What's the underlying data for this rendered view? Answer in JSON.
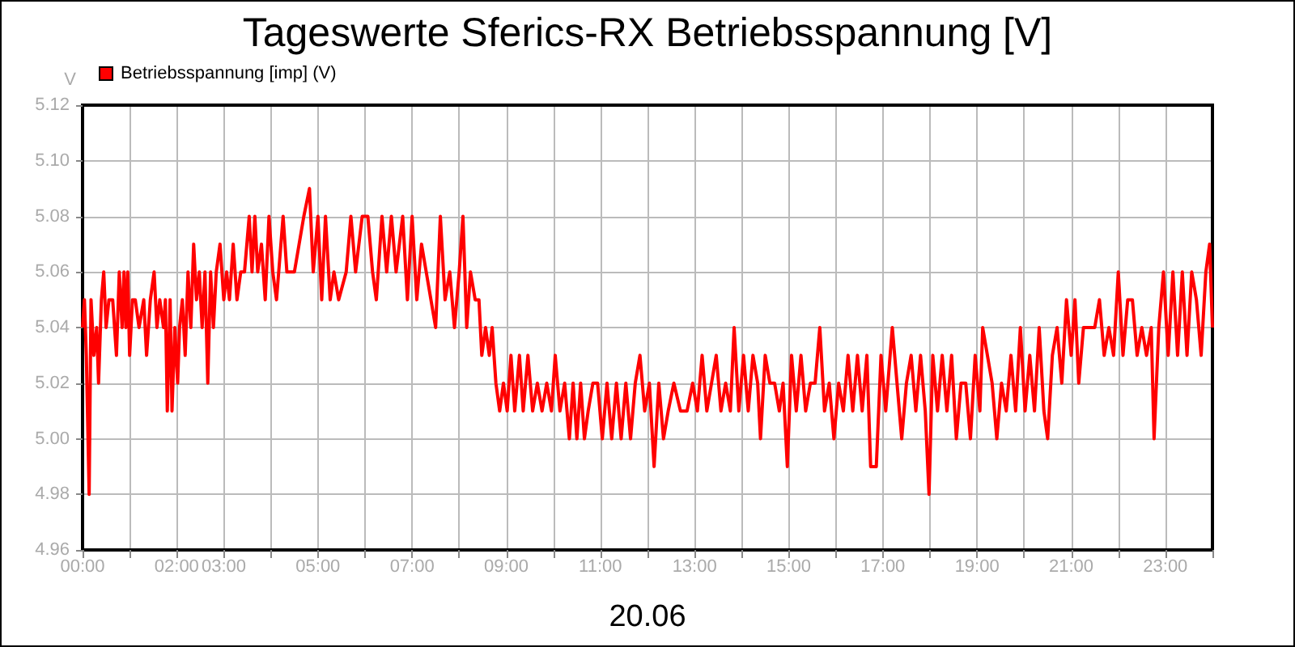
{
  "chart_data": {
    "type": "line",
    "title": "Tageswerte Sferics-RX Betriebsspannung [V]",
    "xlabel": "20.06",
    "ylabel": "V",
    "legend": "top left",
    "grid": true,
    "marker": "none",
    "line_style": "solid",
    "xlim": [
      0,
      24
    ],
    "ylim": [
      4.96,
      5.12
    ],
    "xticks": [
      {
        "value": 0,
        "label": "00:00"
      },
      {
        "value": 1,
        "label": null
      },
      {
        "value": 2,
        "label": "02:00"
      },
      {
        "value": 3,
        "label": "03:00"
      },
      {
        "value": 4,
        "label": null
      },
      {
        "value": 5,
        "label": "05:00"
      },
      {
        "value": 6,
        "label": null
      },
      {
        "value": 7,
        "label": "07:00"
      },
      {
        "value": 8,
        "label": null
      },
      {
        "value": 9,
        "label": "09:00"
      },
      {
        "value": 10,
        "label": null
      },
      {
        "value": 11,
        "label": "11:00"
      },
      {
        "value": 12,
        "label": null
      },
      {
        "value": 13,
        "label": "13:00"
      },
      {
        "value": 14,
        "label": null
      },
      {
        "value": 15,
        "label": "15:00"
      },
      {
        "value": 16,
        "label": null
      },
      {
        "value": 17,
        "label": "17:00"
      },
      {
        "value": 18,
        "label": null
      },
      {
        "value": 19,
        "label": "19:00"
      },
      {
        "value": 20,
        "label": null
      },
      {
        "value": 21,
        "label": "21:00"
      },
      {
        "value": 22,
        "label": null
      },
      {
        "value": 23,
        "label": "23:00"
      },
      {
        "value": 24,
        "label": null
      }
    ],
    "yticks": [
      4.96,
      4.98,
      {
        "value": 5,
        "label": "5.00"
      },
      5.02,
      5.04,
      5.06,
      5.08,
      {
        "value": 5.1,
        "label": "5.10"
      },
      5.12
    ],
    "series": [
      {
        "name": "Betriebsspannung [imp] (V)",
        "color": "#ff0000",
        "x": [
          0,
          0.04,
          0.08,
          0.14,
          0.18,
          0.24,
          0.3,
          0.34,
          0.4,
          0.45,
          0.5,
          0.56,
          0.64,
          0.68,
          0.72,
          0.78,
          0.84,
          0.88,
          0.92,
          0.96,
          1,
          1.06,
          1.12,
          1.2,
          1.3,
          1.36,
          1.44,
          1.52,
          1.58,
          1.64,
          1.72,
          1.76,
          1.8,
          1.86,
          1.9,
          1.96,
          2.02,
          2.06,
          2.12,
          2.18,
          2.24,
          2.3,
          2.36,
          2.42,
          2.48,
          2.54,
          2.6,
          2.66,
          2.72,
          2.78,
          2.84,
          2.92,
          3,
          3.06,
          3.12,
          3.2,
          3.28,
          3.36,
          3.44,
          3.54,
          3.6,
          3.66,
          3.72,
          3.8,
          3.88,
          3.96,
          4.04,
          4.12,
          4.26,
          4.34,
          4.5,
          4.6,
          4.7,
          4.82,
          4.9,
          5,
          5.08,
          5.16,
          5.26,
          5.34,
          5.44,
          5.6,
          5.7,
          5.8,
          5.94,
          6.06,
          6.16,
          6.24,
          6.36,
          6.46,
          6.56,
          6.66,
          6.8,
          6.9,
          7,
          7.1,
          7.2,
          7.3,
          7.4,
          7.5,
          7.6,
          7.7,
          7.8,
          7.9,
          8,
          8.08,
          8.16,
          8.24,
          8.34,
          8.42,
          8.48,
          8.56,
          8.64,
          8.7,
          8.78,
          8.86,
          8.94,
          9.02,
          9.1,
          9.18,
          9.28,
          9.36,
          9.46,
          9.56,
          9.66,
          9.76,
          9.86,
          9.96,
          10.04,
          10.14,
          10.24,
          10.34,
          10.42,
          10.5,
          10.58,
          10.66,
          10.74,
          10.84,
          10.94,
          11.04,
          11.14,
          11.24,
          11.34,
          11.44,
          11.54,
          11.64,
          11.74,
          11.84,
          11.94,
          12.04,
          12.14,
          12.24,
          12.34,
          12.44,
          12.56,
          12.7,
          12.84,
          12.96,
          13.06,
          13.16,
          13.26,
          13.36,
          13.46,
          13.56,
          13.66,
          13.76,
          13.84,
          13.94,
          14.04,
          14.14,
          14.24,
          14.34,
          14.4,
          14.5,
          14.6,
          14.7,
          14.8,
          14.88,
          14.97,
          15.06,
          15.16,
          15.26,
          15.36,
          15.46,
          15.56,
          15.66,
          15.76,
          15.86,
          15.96,
          16.06,
          16.16,
          16.26,
          16.36,
          16.46,
          16.56,
          16.66,
          16.74,
          16.86,
          16.96,
          17.06,
          17.2,
          17.3,
          17.4,
          17.5,
          17.6,
          17.7,
          17.8,
          17.9,
          17.98,
          18.06,
          18.16,
          18.26,
          18.36,
          18.46,
          18.56,
          18.66,
          18.76,
          18.86,
          18.96,
          19.06,
          19.12,
          19.22,
          19.32,
          19.42,
          19.52,
          19.62,
          19.72,
          19.82,
          19.92,
          20.02,
          20.12,
          20.22,
          20.32,
          20.42,
          20.5,
          20.6,
          20.7,
          20.8,
          20.9,
          21,
          21.08,
          21.16,
          21.26,
          21.36,
          21.5,
          21.6,
          21.7,
          21.8,
          21.9,
          22,
          22.1,
          22.2,
          22.3,
          22.4,
          22.5,
          22.6,
          22.7,
          22.76,
          22.86,
          22.96,
          23.06,
          23.16,
          23.26,
          23.36,
          23.46,
          23.56,
          23.66,
          23.76,
          23.86,
          23.94,
          24
        ],
        "values": [
          5.04,
          5.05,
          5.03,
          4.98,
          5.05,
          5.03,
          5.04,
          5.02,
          5.05,
          5.06,
          5.04,
          5.05,
          5.05,
          5.04,
          5.03,
          5.06,
          5.04,
          5.06,
          5.04,
          5.06,
          5.03,
          5.05,
          5.05,
          5.04,
          5.05,
          5.03,
          5.05,
          5.06,
          5.04,
          5.05,
          5.04,
          5.05,
          5.01,
          5.05,
          5.01,
          5.04,
          5.02,
          5.04,
          5.05,
          5.03,
          5.06,
          5.04,
          5.07,
          5.05,
          5.06,
          5.04,
          5.06,
          5.02,
          5.06,
          5.04,
          5.06,
          5.07,
          5.05,
          5.06,
          5.05,
          5.07,
          5.05,
          5.06,
          5.06,
          5.08,
          5.06,
          5.08,
          5.06,
          5.07,
          5.05,
          5.08,
          5.06,
          5.05,
          5.08,
          5.06,
          5.06,
          5.07,
          5.08,
          5.09,
          5.06,
          5.08,
          5.05,
          5.08,
          5.05,
          5.06,
          5.05,
          5.06,
          5.08,
          5.06,
          5.08,
          5.08,
          5.06,
          5.05,
          5.08,
          5.06,
          5.08,
          5.06,
          5.08,
          5.05,
          5.08,
          5.05,
          5.07,
          5.06,
          5.05,
          5.04,
          5.08,
          5.05,
          5.06,
          5.04,
          5.06,
          5.08,
          5.04,
          5.06,
          5.05,
          5.05,
          5.03,
          5.04,
          5.03,
          5.04,
          5.02,
          5.01,
          5.02,
          5.01,
          5.03,
          5.01,
          5.03,
          5.01,
          5.03,
          5.01,
          5.02,
          5.01,
          5.02,
          5.01,
          5.03,
          5.01,
          5.02,
          5.0,
          5.02,
          5.0,
          5.02,
          5.0,
          5.01,
          5.02,
          5.02,
          5.0,
          5.02,
          5.0,
          5.02,
          5.0,
          5.02,
          5.0,
          5.02,
          5.03,
          5.01,
          5.02,
          4.99,
          5.02,
          5.0,
          5.01,
          5.02,
          5.01,
          5.01,
          5.02,
          5.01,
          5.03,
          5.01,
          5.02,
          5.03,
          5.01,
          5.02,
          5.01,
          5.04,
          5.01,
          5.03,
          5.01,
          5.03,
          5.02,
          5.0,
          5.03,
          5.02,
          5.02,
          5.01,
          5.02,
          4.99,
          5.03,
          5.01,
          5.03,
          5.01,
          5.02,
          5.02,
          5.04,
          5.01,
          5.02,
          5.0,
          5.02,
          5.01,
          5.03,
          5.01,
          5.03,
          5.01,
          5.03,
          4.99,
          4.99,
          5.03,
          5.01,
          5.04,
          5.02,
          5.0,
          5.02,
          5.03,
          5.01,
          5.03,
          5.01,
          4.98,
          5.03,
          5.01,
          5.03,
          5.01,
          5.03,
          5.0,
          5.02,
          5.02,
          5.0,
          5.03,
          5.01,
          5.04,
          5.03,
          5.02,
          5.0,
          5.02,
          5.01,
          5.03,
          5.01,
          5.04,
          5.01,
          5.03,
          5.01,
          5.04,
          5.01,
          5.0,
          5.03,
          5.04,
          5.02,
          5.05,
          5.03,
          5.05,
          5.02,
          5.04,
          5.04,
          5.04,
          5.05,
          5.03,
          5.04,
          5.03,
          5.06,
          5.03,
          5.05,
          5.05,
          5.03,
          5.04,
          5.03,
          5.04,
          5.0,
          5.04,
          5.06,
          5.03,
          5.06,
          5.03,
          5.06,
          5.03,
          5.06,
          5.05,
          5.03,
          5.06,
          5.07,
          5.04
        ]
      }
    ]
  }
}
